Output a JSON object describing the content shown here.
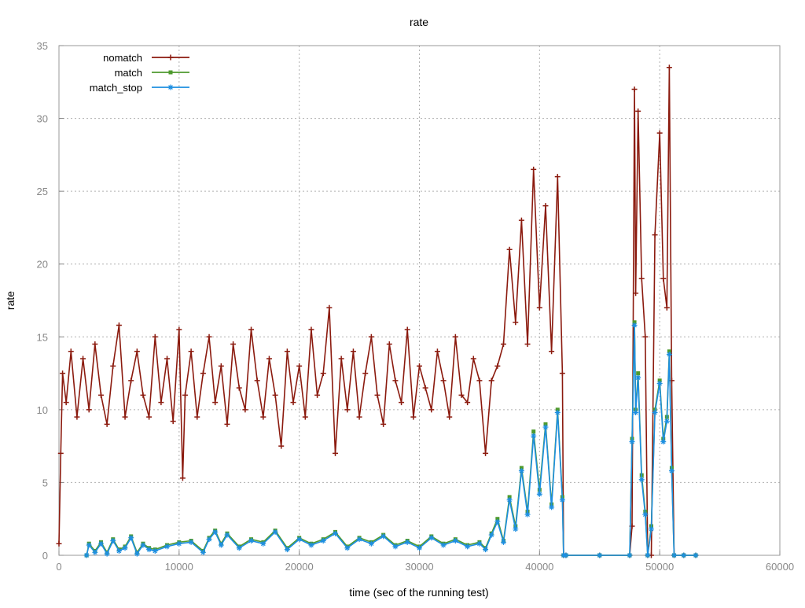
{
  "chart_data": {
    "type": "line",
    "title": "rate",
    "xlabel": "time (sec of the running test)",
    "ylabel": "rate",
    "xlim": [
      0,
      60000
    ],
    "ylim": [
      0,
      35
    ],
    "x_ticks": [
      0,
      10000,
      20000,
      30000,
      40000,
      50000,
      60000
    ],
    "x_tick_labels": [
      "0",
      "10000",
      "20000",
      "30000",
      "40000",
      "50000",
      "60000"
    ],
    "y_ticks": [
      0,
      5,
      10,
      15,
      20,
      25,
      30,
      35
    ],
    "y_tick_labels": [
      "0",
      "5",
      "10",
      "15",
      "20",
      "25",
      "30",
      "35"
    ],
    "grid": true,
    "legend_position": "top-left",
    "series": [
      {
        "name": "nomatch",
        "color": "#8b1a0e",
        "marker": "plus",
        "x": [
          0,
          150,
          300,
          600,
          1000,
          1500,
          2000,
          2500,
          3000,
          3500,
          4000,
          4500,
          5000,
          5500,
          6000,
          6500,
          7000,
          7500,
          8000,
          8500,
          9000,
          9500,
          10000,
          10300,
          10500,
          11000,
          11500,
          12000,
          12500,
          13000,
          13500,
          14000,
          14500,
          15000,
          15500,
          16000,
          16500,
          17000,
          17500,
          18000,
          18500,
          19000,
          19500,
          20000,
          20500,
          21000,
          21500,
          22000,
          22500,
          23000,
          23500,
          24000,
          24500,
          25000,
          25500,
          26000,
          26500,
          27000,
          27500,
          28000,
          28500,
          29000,
          29500,
          30000,
          30500,
          31000,
          31500,
          32000,
          32500,
          33000,
          33500,
          34000,
          34500,
          35000,
          35500,
          36000,
          36500,
          37000,
          37500,
          38000,
          38500,
          39000,
          39500,
          40000,
          40500,
          41000,
          41500,
          41900,
          42000,
          42200,
          45000,
          47500,
          47700,
          47900,
          48000,
          48200,
          48500,
          48800,
          49000,
          49300,
          49600,
          50000,
          50300,
          50600,
          50800,
          51000,
          51200,
          52000,
          53000
        ],
        "values": [
          0.8,
          7.0,
          12.5,
          10.5,
          14.0,
          9.5,
          13.5,
          10.0,
          14.5,
          11.0,
          9.0,
          13.0,
          15.8,
          9.5,
          12.0,
          14.0,
          11.0,
          9.5,
          15.0,
          10.5,
          13.5,
          9.2,
          15.5,
          5.3,
          11.0,
          14.0,
          9.5,
          12.5,
          15.0,
          10.5,
          13.0,
          9.0,
          14.5,
          11.5,
          10.0,
          15.5,
          12.0,
          9.5,
          13.5,
          11.0,
          7.5,
          14.0,
          10.5,
          13.0,
          9.5,
          15.5,
          11.0,
          12.5,
          17.0,
          7.0,
          13.5,
          10.0,
          14.0,
          9.5,
          12.5,
          15.0,
          11.0,
          9.0,
          14.5,
          12.0,
          10.5,
          15.5,
          9.5,
          13.0,
          11.5,
          10.0,
          14.0,
          12.0,
          9.5,
          15.0,
          11.0,
          10.5,
          13.5,
          12.0,
          7.0,
          12.0,
          13.0,
          14.5,
          21.0,
          16.0,
          23.0,
          14.5,
          26.5,
          17.0,
          24.0,
          14.0,
          26.0,
          12.5,
          0,
          0,
          0,
          0,
          2.0,
          32.0,
          18.0,
          30.5,
          19.0,
          15.0,
          0,
          0,
          22.0,
          29.0,
          19.0,
          17.0,
          33.5,
          12.0,
          0,
          0,
          0
        ]
      },
      {
        "name": "match",
        "color": "#4e9a2e",
        "marker": "square",
        "x": [
          0,
          2000,
          2300,
          2500,
          3000,
          3500,
          4000,
          4500,
          5000,
          5500,
          6000,
          6500,
          7000,
          7500,
          8000,
          9000,
          10000,
          11000,
          12000,
          12500,
          13000,
          13500,
          14000,
          15000,
          16000,
          17000,
          18000,
          19000,
          20000,
          21000,
          22000,
          23000,
          24000,
          25000,
          26000,
          27000,
          28000,
          29000,
          30000,
          31000,
          32000,
          33000,
          34000,
          35000,
          35500,
          36000,
          36500,
          37000,
          37500,
          38000,
          38500,
          39000,
          39500,
          40000,
          40500,
          41000,
          41500,
          41900,
          42000,
          42200,
          45000,
          47500,
          47700,
          47900,
          48000,
          48200,
          48500,
          48800,
          49000,
          49300,
          49600,
          50000,
          50300,
          50600,
          50800,
          51000,
          51200,
          52000,
          53000
        ],
        "values": [
          null,
          null,
          0,
          0.8,
          0.3,
          0.9,
          0.2,
          1.1,
          0.4,
          0.6,
          1.3,
          0.2,
          0.8,
          0.5,
          0.4,
          0.7,
          0.9,
          1.0,
          0.3,
          1.2,
          1.7,
          0.8,
          1.5,
          0.6,
          1.1,
          0.9,
          1.7,
          0.5,
          1.2,
          0.8,
          1.1,
          1.6,
          0.6,
          1.2,
          0.9,
          1.4,
          0.7,
          1.0,
          0.6,
          1.3,
          0.8,
          1.1,
          0.7,
          0.9,
          0.5,
          1.5,
          2.5,
          1.0,
          4.0,
          2.0,
          6.0,
          3.0,
          8.5,
          4.5,
          9.0,
          3.5,
          10.0,
          4.0,
          0,
          0,
          0,
          0,
          8.0,
          16.0,
          10.0,
          12.5,
          5.5,
          3.0,
          0,
          2.0,
          10.0,
          12.0,
          8.0,
          9.5,
          14.0,
          6.0,
          0,
          0,
          0
        ]
      },
      {
        "name": "match_stop",
        "color": "#1e8fe1",
        "marker": "star",
        "x": [
          0,
          2000,
          2300,
          2500,
          3000,
          3500,
          4000,
          4500,
          5000,
          5500,
          6000,
          6500,
          7000,
          7500,
          8000,
          9000,
          10000,
          11000,
          12000,
          12500,
          13000,
          13500,
          14000,
          15000,
          16000,
          17000,
          18000,
          19000,
          20000,
          21000,
          22000,
          23000,
          24000,
          25000,
          26000,
          27000,
          28000,
          29000,
          30000,
          31000,
          32000,
          33000,
          34000,
          35000,
          35500,
          36000,
          36500,
          37000,
          37500,
          38000,
          38500,
          39000,
          39500,
          40000,
          40500,
          41000,
          41500,
          41900,
          42000,
          42200,
          45000,
          47500,
          47700,
          47900,
          48000,
          48200,
          48500,
          48800,
          49000,
          49300,
          49600,
          50000,
          50300,
          50600,
          50800,
          51000,
          51200,
          52000,
          53000
        ],
        "values": [
          null,
          null,
          0,
          0.7,
          0.2,
          0.8,
          0.1,
          1.0,
          0.3,
          0.5,
          1.2,
          0.1,
          0.7,
          0.4,
          0.3,
          0.6,
          0.8,
          0.9,
          0.2,
          1.1,
          1.6,
          0.7,
          1.4,
          0.5,
          1.0,
          0.8,
          1.6,
          0.4,
          1.1,
          0.7,
          1.0,
          1.5,
          0.5,
          1.1,
          0.8,
          1.3,
          0.6,
          0.9,
          0.5,
          1.2,
          0.7,
          1.0,
          0.6,
          0.8,
          0.4,
          1.4,
          2.3,
          0.9,
          3.8,
          1.8,
          5.8,
          2.8,
          8.2,
          4.2,
          8.8,
          3.3,
          9.8,
          3.8,
          0,
          0,
          0,
          0,
          7.8,
          15.8,
          9.8,
          12.2,
          5.2,
          2.8,
          0,
          1.8,
          9.8,
          11.8,
          7.8,
          9.2,
          13.8,
          5.8,
          0,
          0,
          0
        ]
      }
    ]
  }
}
